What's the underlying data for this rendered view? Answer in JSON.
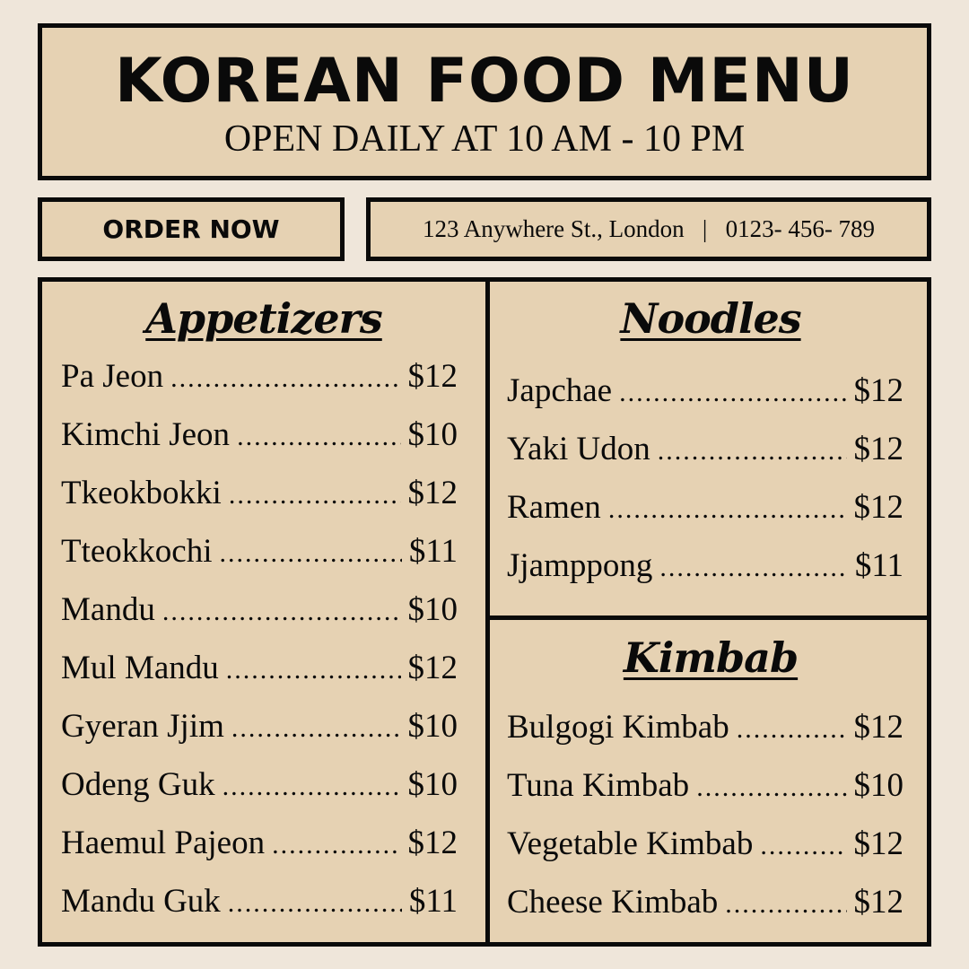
{
  "header": {
    "title": "KOREAN FOOD MENU",
    "hours": "OPEN DAILY AT 10 AM - 10 PM"
  },
  "order_button": "ORDER NOW",
  "contact": {
    "address": "123 Anywhere St., London",
    "separator": "|",
    "phone": "0123- 456- 789"
  },
  "colors": {
    "background": "#efe6da",
    "panel": "#e6d2b3",
    "border": "#0a0a0a"
  },
  "sections": [
    {
      "title": "Appetizers",
      "items": [
        {
          "name": "Pa Jeon",
          "price": "$12"
        },
        {
          "name": "Kimchi Jeon",
          "price": "$10"
        },
        {
          "name": "Tkeokbokki",
          "price": "$12"
        },
        {
          "name": "Tteokkochi",
          "price": "$11"
        },
        {
          "name": "Mandu",
          "price": "$10"
        },
        {
          "name": "Mul Mandu",
          "price": "$12"
        },
        {
          "name": "Gyeran Jjim",
          "price": "$10"
        },
        {
          "name": "Odeng Guk",
          "price": "$10"
        },
        {
          "name": "Haemul Pajeon",
          "price": "$12"
        },
        {
          "name": "Mandu Guk",
          "price": "$11"
        }
      ]
    },
    {
      "title": "Noodles",
      "items": [
        {
          "name": "Japchae",
          "price": "$12"
        },
        {
          "name": "Yaki Udon",
          "price": "$12"
        },
        {
          "name": "Ramen",
          "price": "$12"
        },
        {
          "name": "Jjamppong",
          "price": "$11"
        }
      ]
    },
    {
      "title": "Kimbab",
      "items": [
        {
          "name": "Bulgogi Kimbab",
          "price": "$12"
        },
        {
          "name": "Tuna Kimbab",
          "price": "$10"
        },
        {
          "name": "Vegetable Kimbab",
          "price": "$12"
        },
        {
          "name": "Cheese Kimbab",
          "price": "$12"
        }
      ]
    }
  ]
}
